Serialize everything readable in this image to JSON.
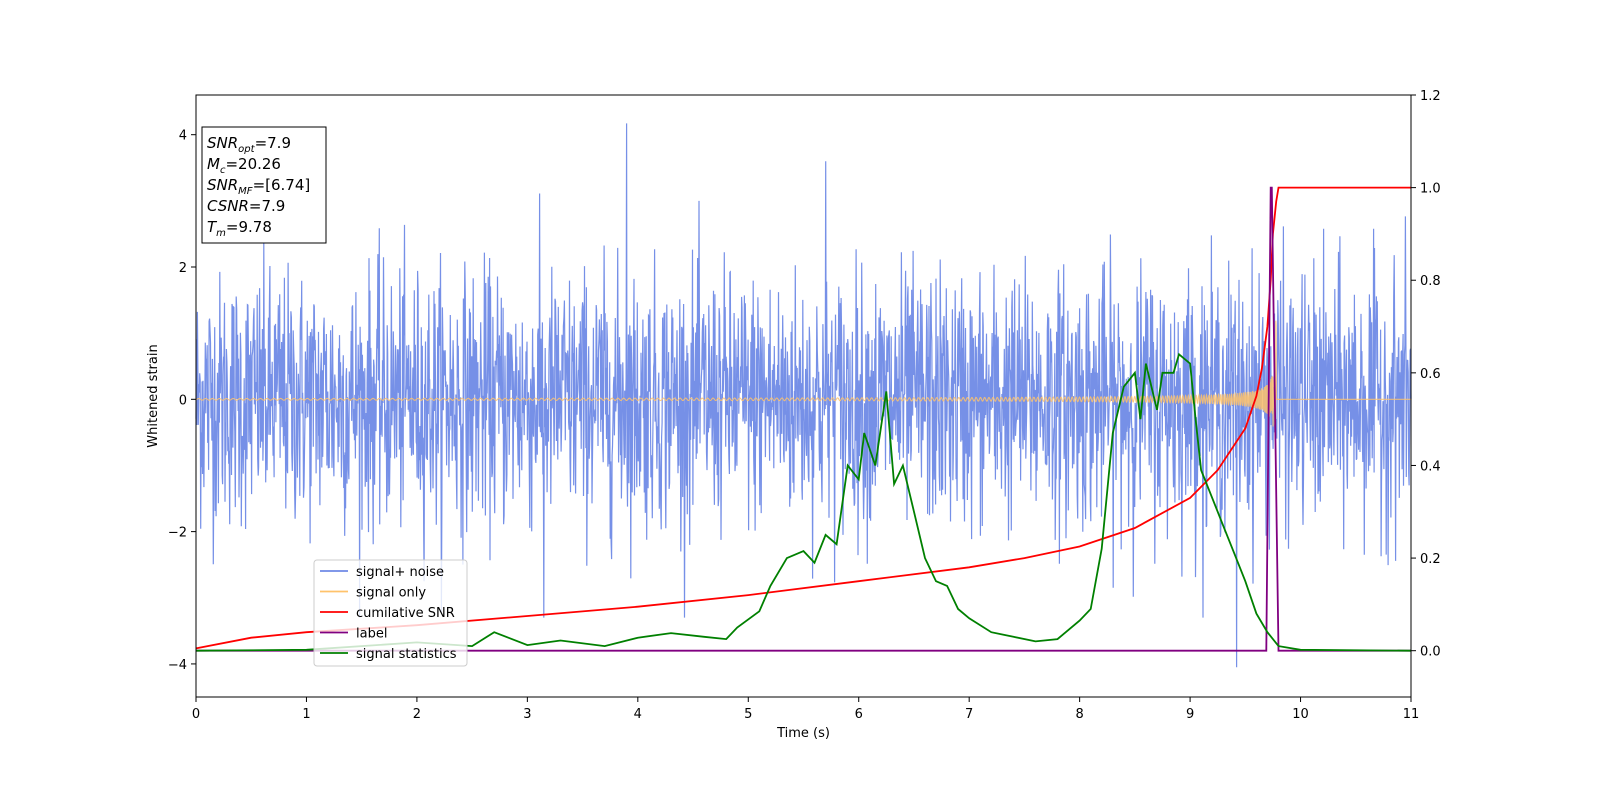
{
  "chart_data": {
    "type": "line",
    "xlabel": "Time (s)",
    "ylabel": "Whitened strain",
    "xlim": [
      0,
      11
    ],
    "ylim_left": [
      -4.5,
      4.6
    ],
    "ylim_right": [
      -0.1,
      1.2
    ],
    "x_ticks": [
      0,
      1,
      2,
      3,
      4,
      5,
      6,
      7,
      8,
      9,
      10,
      11
    ],
    "y_ticks_left": [
      -4,
      -2,
      0,
      2,
      4
    ],
    "y_ticks_right": [
      "0.0",
      "0.2",
      "0.4",
      "0.6",
      "0.8",
      "1.0",
      "1.2"
    ],
    "grid": false,
    "legend_location": "lower-left",
    "legend": [
      {
        "label": "signal+ noise",
        "color": "#6f8ae6"
      },
      {
        "label": "signal only",
        "color": "#ffc36b"
      },
      {
        "label": "cumilative SNR",
        "color": "#ff0000"
      },
      {
        "label": "label",
        "color": "#800080"
      },
      {
        "label": "signal statistics",
        "color": "#008000"
      }
    ],
    "annotation": {
      "lines": [
        {
          "var": "SNR",
          "sub": "opt",
          "rest": "=7.9"
        },
        {
          "var": "M",
          "sub": "c",
          "rest": "=20.26"
        },
        {
          "var": "SNR",
          "sub": "MF",
          "rest": "=[6.74]"
        },
        {
          "var": "CSNR",
          "sub": "",
          "rest": "=7.9"
        },
        {
          "var": "T",
          "sub": "m",
          "rest": "=9.78"
        }
      ]
    },
    "series": [
      {
        "name": "signal+ noise",
        "axis": "left",
        "kind": "noise",
        "color": "#6f8ae6",
        "x_range": [
          0,
          11
        ],
        "typical_band": [
          -2.1,
          2.3
        ],
        "notable_peaks": [
          [
            3.9,
            4.17
          ],
          [
            5.7,
            3.6
          ],
          [
            9.42,
            -4.05
          ],
          [
            3.15,
            -3.3
          ]
        ]
      },
      {
        "name": "signal only",
        "axis": "left",
        "kind": "chirp",
        "color": "#ffc36b",
        "merger_time": 9.78,
        "peak_amplitude": 2.3
      },
      {
        "name": "cumilative SNR",
        "axis": "right",
        "color": "#ff0000",
        "points": [
          [
            0,
            0.005
          ],
          [
            0.5,
            0.028
          ],
          [
            1,
            0.04
          ],
          [
            2,
            0.055
          ],
          [
            3,
            0.075
          ],
          [
            4,
            0.095
          ],
          [
            5,
            0.12
          ],
          [
            6,
            0.15
          ],
          [
            7,
            0.18
          ],
          [
            7.5,
            0.2
          ],
          [
            8,
            0.225
          ],
          [
            8.5,
            0.265
          ],
          [
            9,
            0.33
          ],
          [
            9.25,
            0.39
          ],
          [
            9.5,
            0.48
          ],
          [
            9.6,
            0.55
          ],
          [
            9.65,
            0.61
          ],
          [
            9.7,
            0.7
          ],
          [
            9.73,
            0.8
          ],
          [
            9.75,
            0.9
          ],
          [
            9.78,
            0.97
          ],
          [
            9.8,
            1.0
          ],
          [
            11,
            1.0
          ]
        ]
      },
      {
        "name": "label",
        "axis": "right",
        "color": "#800080",
        "points": [
          [
            0,
            0
          ],
          [
            9.69,
            0
          ],
          [
            9.73,
            1.0
          ],
          [
            9.74,
            1.0
          ],
          [
            9.8,
            0
          ],
          [
            11,
            0
          ]
        ]
      },
      {
        "name": "signal statistics",
        "axis": "right",
        "color": "#008000",
        "points": [
          [
            0,
            0
          ],
          [
            1,
            0.002
          ],
          [
            2,
            0.018
          ],
          [
            2.5,
            0.01
          ],
          [
            2.7,
            0.04
          ],
          [
            3,
            0.012
          ],
          [
            3.3,
            0.022
          ],
          [
            3.7,
            0.01
          ],
          [
            4,
            0.028
          ],
          [
            4.3,
            0.038
          ],
          [
            4.6,
            0.03
          ],
          [
            4.8,
            0.025
          ],
          [
            4.9,
            0.05
          ],
          [
            5.1,
            0.085
          ],
          [
            5.2,
            0.14
          ],
          [
            5.35,
            0.2
          ],
          [
            5.5,
            0.215
          ],
          [
            5.6,
            0.19
          ],
          [
            5.7,
            0.25
          ],
          [
            5.8,
            0.23
          ],
          [
            5.9,
            0.4
          ],
          [
            6.0,
            0.37
          ],
          [
            6.05,
            0.47
          ],
          [
            6.15,
            0.4
          ],
          [
            6.25,
            0.56
          ],
          [
            6.32,
            0.36
          ],
          [
            6.4,
            0.4
          ],
          [
            6.5,
            0.3
          ],
          [
            6.6,
            0.2
          ],
          [
            6.7,
            0.15
          ],
          [
            6.8,
            0.14
          ],
          [
            6.9,
            0.09
          ],
          [
            7.0,
            0.07
          ],
          [
            7.2,
            0.04
          ],
          [
            7.4,
            0.03
          ],
          [
            7.6,
            0.02
          ],
          [
            7.8,
            0.025
          ],
          [
            8.0,
            0.065
          ],
          [
            8.1,
            0.09
          ],
          [
            8.2,
            0.22
          ],
          [
            8.3,
            0.47
          ],
          [
            8.4,
            0.57
          ],
          [
            8.5,
            0.6
          ],
          [
            8.55,
            0.5
          ],
          [
            8.6,
            0.62
          ],
          [
            8.7,
            0.52
          ],
          [
            8.75,
            0.6
          ],
          [
            8.85,
            0.6
          ],
          [
            8.9,
            0.64
          ],
          [
            9.0,
            0.62
          ],
          [
            9.05,
            0.5
          ],
          [
            9.1,
            0.39
          ],
          [
            9.2,
            0.33
          ],
          [
            9.3,
            0.27
          ],
          [
            9.4,
            0.21
          ],
          [
            9.5,
            0.15
          ],
          [
            9.6,
            0.08
          ],
          [
            9.7,
            0.04
          ],
          [
            9.8,
            0.01
          ],
          [
            10,
            0.002
          ],
          [
            11,
            0
          ]
        ]
      }
    ]
  }
}
